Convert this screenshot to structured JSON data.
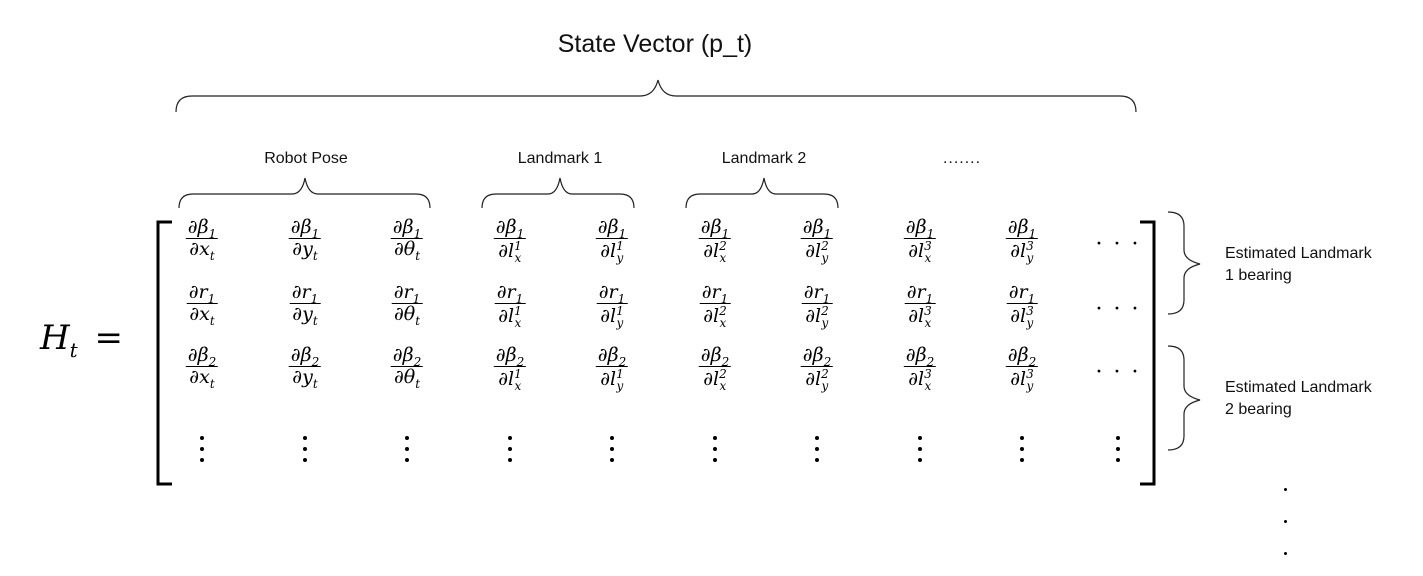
{
  "title": "State Vector (p_t)",
  "groups": [
    "Robot Pose",
    "Landmark 1",
    "Landmark 2",
    "......."
  ],
  "lhs": "H",
  "lhs_sub": "t",
  "equals": "=",
  "side_labels": [
    {
      "line1": "Estimated Landmark",
      "line2": "1 bearing"
    },
    {
      "line1": "Estimated Landmark",
      "line2": "2 bearing"
    }
  ],
  "matrix": {
    "numerators": [
      {
        "sym": "∂β",
        "sub": "1"
      },
      {
        "sym": "∂r",
        "sub": "1"
      },
      {
        "sym": "∂β",
        "sub": "2"
      }
    ],
    "denominators": [
      {
        "sym": "∂x",
        "sub": "t",
        "sup": ""
      },
      {
        "sym": "∂y",
        "sub": "t",
        "sup": ""
      },
      {
        "sym": "∂θ",
        "sub": "t",
        "sup": ""
      },
      {
        "sym": "∂l",
        "sub": "x",
        "sup": "1"
      },
      {
        "sym": "∂l",
        "sub": "y",
        "sup": "1"
      },
      {
        "sym": "∂l",
        "sub": "x",
        "sup": "2"
      },
      {
        "sym": "∂l",
        "sub": "y",
        "sup": "2"
      },
      {
        "sym": "∂l",
        "sub": "x",
        "sup": "3"
      },
      {
        "sym": "∂l",
        "sub": "y",
        "sup": "3"
      }
    ],
    "cdots": "· · ·"
  }
}
